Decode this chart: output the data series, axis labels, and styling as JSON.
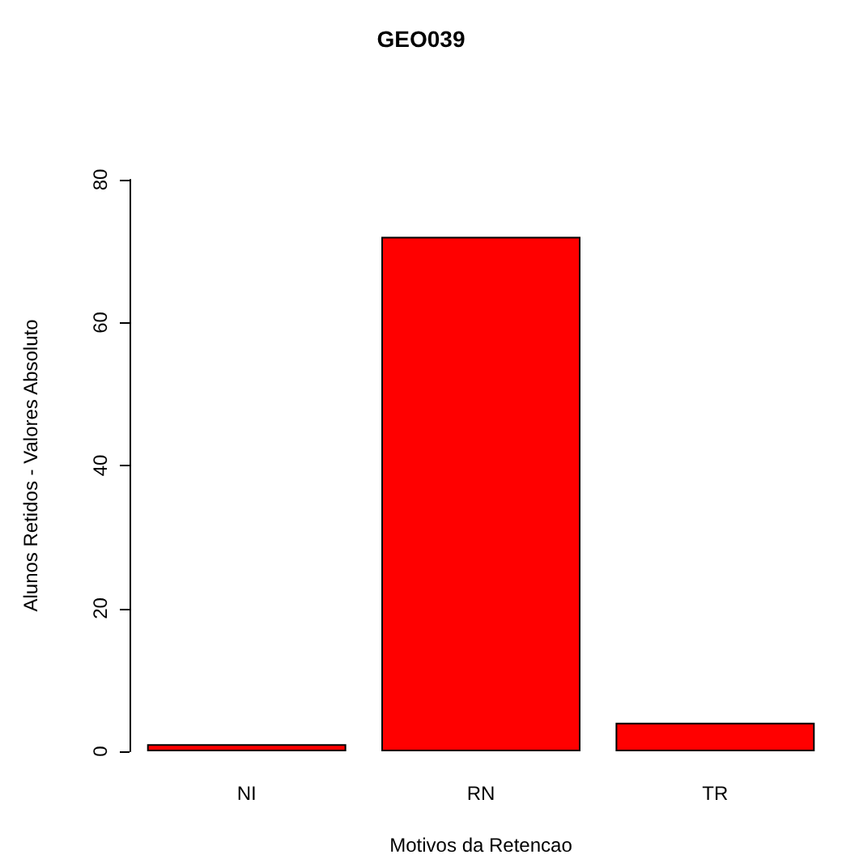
{
  "chart_data": {
    "type": "bar",
    "title": "GEO039",
    "xlabel": "Motivos da Retencao",
    "ylabel": "Alunos Retidos - Valores Absoluto",
    "categories": [
      "NI",
      "RN",
      "TR"
    ],
    "values": [
      1,
      72,
      4
    ],
    "color": "#ff0000",
    "ylim": [
      0,
      80
    ],
    "yticks": [
      0,
      20,
      40,
      60,
      80
    ],
    "grid": false
  }
}
